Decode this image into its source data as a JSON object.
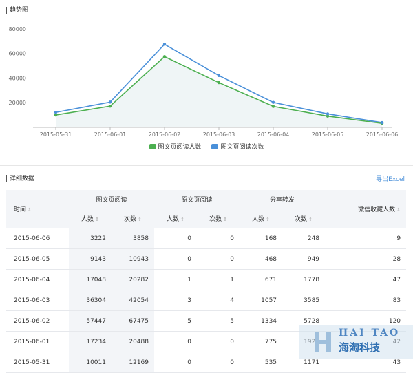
{
  "trend_title": "趋势图",
  "detail_title": "详细数据",
  "export_label": "导出Excel",
  "colors": {
    "reads_users": "#4caf50",
    "reads_times": "#4a90d9"
  },
  "chart_data": {
    "type": "line",
    "title": "",
    "xlabel": "",
    "ylabel": "",
    "categories": [
      "2015-05-31",
      "2015-06-01",
      "2015-06-02",
      "2015-06-03",
      "2015-06-04",
      "2015-06-05",
      "2015-06-06"
    ],
    "yticks": [
      "20000",
      "40000",
      "60000",
      "80000"
    ],
    "ylim": [
      0,
      85000
    ],
    "grid": false,
    "legend_position": "bottom",
    "series": [
      {
        "name": "图文页阅读人数",
        "values": [
          10011,
          17234,
          57447,
          36304,
          17048,
          9143,
          3222
        ]
      },
      {
        "name": "图文页阅读次数",
        "values": [
          12169,
          20488,
          67475,
          42054,
          20282,
          10943,
          3858
        ]
      }
    ]
  },
  "table": {
    "headers": {
      "time": "时间",
      "group1": "图文页阅读",
      "group2": "原文页阅读",
      "group3": "分享转发",
      "wechat_fav": "微信收藏人数",
      "users": "人数",
      "times": "次数"
    },
    "rows": [
      [
        "2015-06-06",
        "3222",
        "3858",
        "0",
        "0",
        "168",
        "248",
        "9"
      ],
      [
        "2015-06-05",
        "9143",
        "10943",
        "0",
        "0",
        "468",
        "949",
        "28"
      ],
      [
        "2015-06-04",
        "17048",
        "20282",
        "1",
        "1",
        "671",
        "1778",
        "47"
      ],
      [
        "2015-06-03",
        "36304",
        "42054",
        "3",
        "4",
        "1057",
        "3585",
        "83"
      ],
      [
        "2015-06-02",
        "57447",
        "67475",
        "5",
        "5",
        "1334",
        "5728",
        "120"
      ],
      [
        "2015-06-01",
        "17234",
        "20488",
        "0",
        "0",
        "775",
        "1923",
        "42"
      ],
      [
        "2015-05-31",
        "10011",
        "12169",
        "0",
        "0",
        "535",
        "1171",
        "43"
      ]
    ]
  },
  "watermark": {
    "line1": "HAI TAO",
    "line2": "海淘科技"
  }
}
